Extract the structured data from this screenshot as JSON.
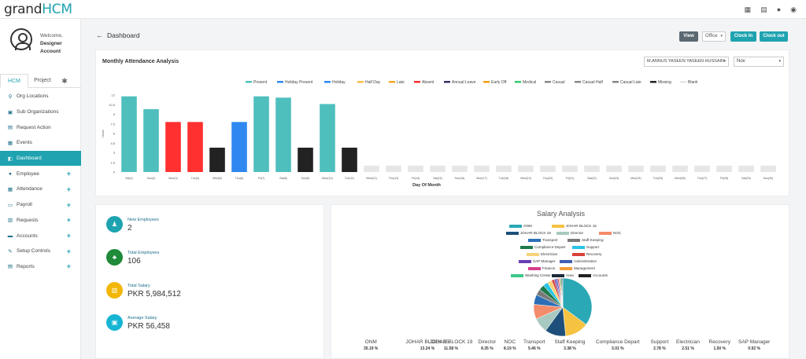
{
  "app": {
    "logo_main": "grand",
    "logo_accent": "HCM"
  },
  "topbar": {
    "icons": [
      "calendar-icon",
      "clipboard-icon",
      "bell-icon",
      "user-icon"
    ]
  },
  "profile": {
    "welcome": "Welcome,",
    "name": "Designer Account"
  },
  "sidebar_tabs": {
    "hcm": "HCM",
    "project": "Project"
  },
  "nav": [
    {
      "label": "Org Locations",
      "icon": "location-icon",
      "expandable": false
    },
    {
      "label": "Sub Organizations",
      "icon": "org-icon",
      "expandable": false
    },
    {
      "label": "Request Action",
      "icon": "request-icon",
      "expandable": false
    },
    {
      "label": "Events",
      "icon": "events-icon",
      "expandable": false
    },
    {
      "label": "Dashboard",
      "icon": "dashboard-icon",
      "expandable": false,
      "active": true
    },
    {
      "label": "Employee",
      "icon": "employee-icon",
      "expandable": true
    },
    {
      "label": "Attendance",
      "icon": "attendance-icon",
      "expandable": true
    },
    {
      "label": "Payroll",
      "icon": "payroll-icon",
      "expandable": true
    },
    {
      "label": "Requests",
      "icon": "requests-icon",
      "expandable": true
    },
    {
      "label": "Accounts",
      "icon": "accounts-icon",
      "expandable": true
    },
    {
      "label": "Setup Controls",
      "icon": "setup-icon",
      "expandable": true
    },
    {
      "label": "Reports",
      "icon": "reports-icon",
      "expandable": true
    }
  ],
  "header": {
    "title": "Dashboard",
    "view_btn": "View",
    "office_select": "Office",
    "clock_in": "Clock In",
    "clock_out": "Clock out"
  },
  "attendance": {
    "title": "Monthly Attendance Analysis",
    "employee": "M.ANNUS YASEEN YASEEN HUSSAIN",
    "month": "Nov"
  },
  "chart_data": {
    "type": "bar",
    "xlabel": "Day Of Month",
    "ylabel": "Hours",
    "ylim": [
      0,
      12
    ],
    "yticks": [
      "0",
      "1.5",
      "3",
      "4.5",
      "6",
      "7.5",
      "9",
      "10.5",
      "12"
    ],
    "legend": [
      {
        "name": "Present",
        "color": "#4fbfbe"
      },
      {
        "name": "Holiday Present",
        "color": "#2e88f0"
      },
      {
        "name": "Holiday",
        "color": "#2e88f0"
      },
      {
        "name": "Half Day",
        "color": "#f5c242"
      },
      {
        "name": "Late",
        "color": "#f5a623"
      },
      {
        "name": "Absent",
        "color": "#ff3030"
      },
      {
        "name": "Annual Leave",
        "color": "#333366"
      },
      {
        "name": "Early Off",
        "color": "#f39c12"
      },
      {
        "name": "Medical",
        "color": "#2ecc71"
      },
      {
        "name": "Casual",
        "color": "#888888"
      },
      {
        "name": "Casual Half",
        "color": "#888888"
      },
      {
        "name": "Casual Late",
        "color": "#888888"
      },
      {
        "name": "Missing",
        "color": "#222222"
      },
      {
        "name": "Blank",
        "color": "#e6e6e6"
      }
    ],
    "categories": [
      "Sat(1)",
      "Sun(2)",
      "Mon(3)",
      "Tue(4)",
      "Wed(5)",
      "Thu(6)",
      "Fri(7)",
      "Sat(8)",
      "Sun(9)",
      "Mon(10)",
      "Tue(11)",
      "Wed(12)",
      "Thu(13)",
      "Fri(14)",
      "Sat(15)",
      "Sun(16)",
      "Mon(17)",
      "Tue(18)",
      "Wed(19)",
      "Thu(20)",
      "Fri(21)",
      "Sat(22)",
      "Sun(23)",
      "Mon(24)",
      "Tue(25)",
      "Wed(26)",
      "Thu(27)",
      "Fri(28)",
      "Sat(29)",
      "Sun(30)"
    ],
    "values": [
      11.8,
      9.8,
      7.8,
      7.8,
      3.8,
      7.8,
      11.8,
      11.6,
      3.8,
      10.6,
      3.8,
      1,
      1,
      1,
      1,
      1,
      1,
      1,
      1,
      1,
      1,
      1,
      1,
      1,
      1,
      1,
      1,
      1,
      1,
      1
    ],
    "bar_types": [
      "Present",
      "Present",
      "Absent",
      "Absent",
      "Missing",
      "Holiday Present",
      "Present",
      "Present",
      "Missing",
      "Present",
      "Missing",
      "Blank",
      "Blank",
      "Blank",
      "Blank",
      "Blank",
      "Blank",
      "Blank",
      "Blank",
      "Blank",
      "Blank",
      "Blank",
      "Blank",
      "Blank",
      "Blank",
      "Blank",
      "Blank",
      "Blank",
      "Blank",
      "Blank"
    ]
  },
  "stats": [
    {
      "label": "New Employees",
      "value": "2",
      "icon": "person-icon",
      "color": "#1fa3b0"
    },
    {
      "label": "Total Employees",
      "value": "106",
      "icon": "group-icon",
      "color": "#1e8a3a"
    },
    {
      "label": "Total Salary",
      "value": "PKR 5,984,512",
      "icon": "bank-icon",
      "color": "#f2b705"
    },
    {
      "label": "Average Salary",
      "value": "PKR 56,458",
      "icon": "money-icon",
      "color": "#17b5d4"
    }
  ],
  "salary": {
    "title": "Salary Analysis",
    "pie": [
      {
        "name": "ONM",
        "value": 35.19,
        "color": "#2aa8b5"
      },
      {
        "name": "JOHAR BLOCK 15",
        "value": 13.24,
        "color": "#f5c242"
      },
      {
        "name": "JOHAR BLOCK 19",
        "value": 11.58,
        "color": "#1d4f7a"
      },
      {
        "name": "Director",
        "value": 8.35,
        "color": "#a8c9c0"
      },
      {
        "name": "NOC",
        "value": 8.19,
        "color": "#f48b6a"
      },
      {
        "name": "Transport",
        "value": 5.46,
        "color": "#2d6fb7"
      },
      {
        "name": "Staff Keeping",
        "value": 3.38,
        "color": "#7a7a7a"
      },
      {
        "name": "Compliance Depart",
        "value": 3.01,
        "color": "#1e7a4a"
      },
      {
        "name": "Support",
        "value": 2.78,
        "color": "#29c5e6"
      },
      {
        "name": "Electrician",
        "value": 2.51,
        "color": "#f6d37a"
      },
      {
        "name": "Recovery",
        "value": 1.5,
        "color": "#d8423a"
      },
      {
        "name": "SAP Manager",
        "value": 0.92,
        "color": "#6a3fb5"
      },
      {
        "name": "Administration",
        "value": 0.9,
        "color": "#3f5fb5"
      },
      {
        "name": "Finance",
        "value": 0.8,
        "color": "#d63f8a"
      },
      {
        "name": "Management",
        "value": 0.7,
        "color": "#f39c3a"
      },
      {
        "name": "Washing Center",
        "value": 0.6,
        "color": "#3ec78a"
      },
      {
        "name": "Area",
        "value": 0.5,
        "color": "#1a2a3a"
      },
      {
        "name": "Accounts",
        "value": 0.4,
        "color": "#222222"
      }
    ],
    "percent_labels": [
      {
        "name": "ONM",
        "pct": "35.19 %"
      },
      {
        "name": "JOHAR BLOCK 15",
        "pct": "13.24 %"
      },
      {
        "name": "JOHAR BLOCK 19",
        "pct": "11.58 %"
      },
      {
        "name": "Director",
        "pct": "8.35 %"
      },
      {
        "name": "NOC",
        "pct": "8.19 %"
      },
      {
        "name": "Transport",
        "pct": "5.46 %"
      },
      {
        "name": "Staff Keeping",
        "pct": "3.38 %"
      },
      {
        "name": "Compliance Depart",
        "pct": "3.01 %"
      },
      {
        "name": "Support",
        "pct": "2.78 %"
      },
      {
        "name": "Electrician",
        "pct": "2.51 %"
      },
      {
        "name": "Recovery",
        "pct": "1.50 %"
      },
      {
        "name": "SAP Manager",
        "pct": "0.92 %"
      }
    ]
  }
}
